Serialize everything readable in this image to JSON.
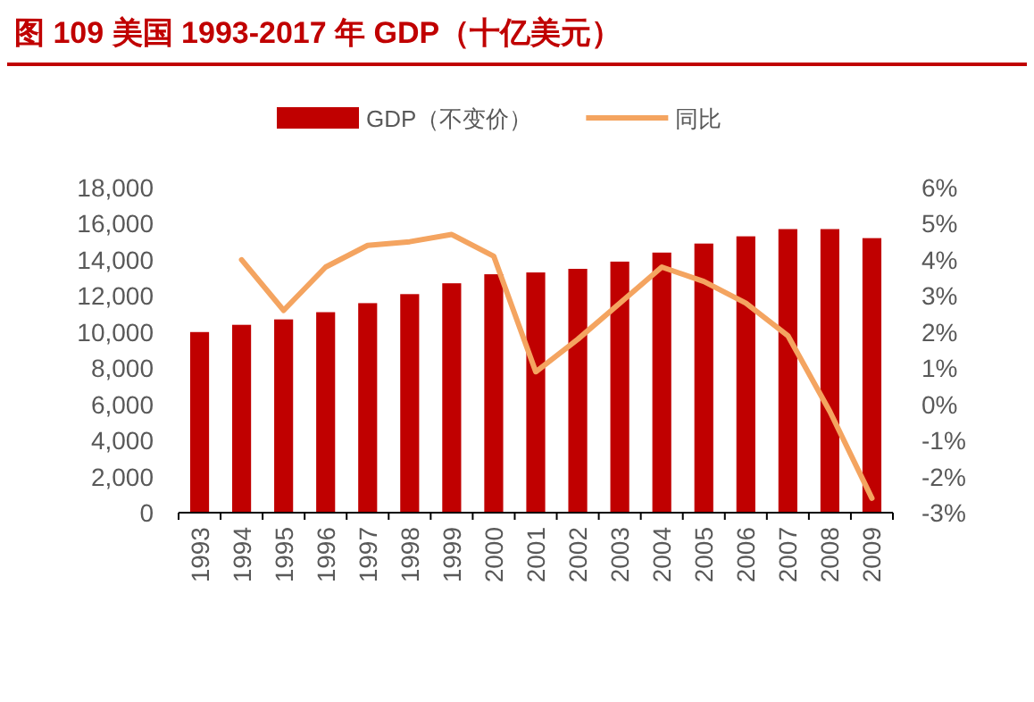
{
  "chart_data": {
    "type": "bar",
    "title": "图 109 美国 1993-2017 年 GDP（十亿美元）",
    "categories": [
      "1993",
      "1994",
      "1995",
      "1996",
      "1997",
      "1998",
      "1999",
      "2000",
      "2001",
      "2002",
      "2003",
      "2004",
      "2005",
      "2006",
      "2007",
      "2008",
      "2009"
    ],
    "series": [
      {
        "name": "GDP（不变价）",
        "color": "#c00000",
        "values": [
          10000,
          10400,
          10700,
          11100,
          11600,
          12100,
          12700,
          13200,
          13300,
          13500,
          13900,
          14400,
          14900,
          15300,
          15700,
          15700,
          15200
        ]
      },
      {
        "name": "同比",
        "color": "#f4a460",
        "type": "line",
        "axis": "y2",
        "values": [
          null,
          4.0,
          2.6,
          3.8,
          4.4,
          4.5,
          4.7,
          4.1,
          0.9,
          1.8,
          2.8,
          3.8,
          3.4,
          2.8,
          1.9,
          -0.2,
          -2.6
        ]
      }
    ],
    "ylim": [
      0,
      18000
    ],
    "yticks": [
      0,
      {
        "value": 2000,
        "label": "2,000"
      },
      {
        "value": 4000,
        "label": "4,000"
      },
      {
        "value": 6000,
        "label": "6,000"
      },
      {
        "value": 8000,
        "label": "8,000"
      },
      {
        "value": 10000,
        "label": "10,000"
      },
      {
        "value": 12000,
        "label": "12,000"
      },
      {
        "value": 14000,
        "label": "14,000"
      },
      {
        "value": 16000,
        "label": "16,000"
      },
      {
        "value": 18000,
        "label": "18,000"
      }
    ],
    "y2lim": [
      -3,
      6
    ],
    "y2ticks": [
      {
        "value": -3,
        "label": "-3%"
      },
      {
        "value": -2,
        "label": "-2%"
      },
      {
        "value": -1,
        "label": "-1%"
      },
      {
        "value": 0,
        "label": "0%"
      },
      {
        "value": 1,
        "label": "1%"
      },
      {
        "value": 2,
        "label": "2%"
      },
      {
        "value": 3,
        "label": "3%"
      },
      {
        "value": 4,
        "label": "4%"
      },
      {
        "value": 5,
        "label": "5%"
      },
      {
        "value": 6,
        "label": "6%"
      }
    ],
    "legend": "top",
    "grid": false
  }
}
